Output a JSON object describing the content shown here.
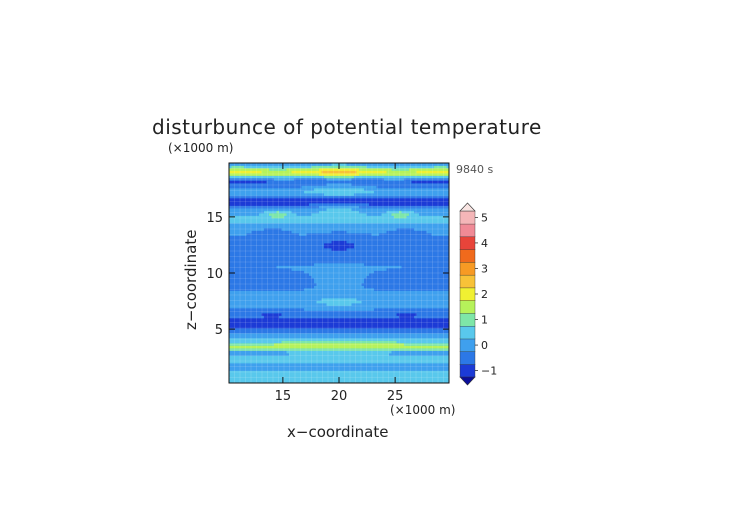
{
  "chart_data": {
    "type": "heatmap",
    "title": "disturbunce of potential temperature",
    "time_label": "9840 s",
    "xlabel": "x−coordinate",
    "ylabel": "z−coordinate",
    "x_unit": "(×1000 m)",
    "z_unit": "(×1000 m)",
    "xlim": [
      10.2,
      29.8
    ],
    "ylim": [
      0.2,
      19.8
    ],
    "x_ticks": [
      15,
      20,
      25
    ],
    "y_ticks": [
      5,
      10,
      15
    ],
    "x_tick_labels": [
      "15",
      "20",
      "25"
    ],
    "y_tick_labels": [
      "5",
      "10",
      "15"
    ],
    "grid": true,
    "colorbar": {
      "levels": [
        -1,
        -0.5,
        0,
        0.5,
        1,
        1.5,
        2,
        2.5,
        3,
        3.5,
        4,
        4.5,
        5
      ],
      "tick_values": [
        -1,
        0,
        1,
        2,
        3,
        4,
        5
      ],
      "tick_labels": [
        "−1",
        "0",
        "1",
        "2",
        "3",
        "4",
        "5"
      ],
      "colors": [
        "#1c3bd6",
        "#2c78e6",
        "#3fa0ee",
        "#59c8ec",
        "#7ee6a8",
        "#b6f25a",
        "#f0f032",
        "#f8c238",
        "#f79a24",
        "#f06a1c",
        "#e8443a",
        "#f08a96",
        "#f4b6b8"
      ],
      "extend_low": "#0b0e9a",
      "extend_high": "#f8e4e2"
    },
    "z_profile": [
      {
        "z": 0.2,
        "v": 0.7
      },
      {
        "z": 0.9,
        "v": 0.8
      },
      {
        "z": 1.6,
        "v": 0.3
      },
      {
        "z": 2.3,
        "v": 0.7
      },
      {
        "z": 2.9,
        "v": 0.4
      },
      {
        "z": 3.5,
        "v": 1.6
      },
      {
        "z": 4.1,
        "v": 0.6
      },
      {
        "z": 4.7,
        "v": -0.1
      },
      {
        "z": 5.5,
        "v": -0.9
      },
      {
        "z": 6.2,
        "v": -0.3
      },
      {
        "z": 7.5,
        "v": 0.4
      },
      {
        "z": 9.0,
        "v": -0.2
      },
      {
        "z": 10.5,
        "v": 0.0
      },
      {
        "z": 12.5,
        "v": -0.2
      },
      {
        "z": 13.8,
        "v": 0.1
      },
      {
        "z": 14.8,
        "v": 0.6
      },
      {
        "z": 15.6,
        "v": 0.1
      },
      {
        "z": 16.4,
        "v": -0.8
      },
      {
        "z": 17.2,
        "v": 0.3
      },
      {
        "z": 18.2,
        "v": -0.9
      },
      {
        "z": 19.0,
        "v": 1.8
      },
      {
        "z": 19.8,
        "v": 0.0
      }
    ],
    "features": [
      {
        "x": 20.0,
        "z": 19.0,
        "sx": 3.0,
        "sz": 0.8,
        "a": 0.9
      },
      {
        "x": 11.0,
        "z": 18.8,
        "sx": 2.0,
        "sz": 0.9,
        "a": 0.6
      },
      {
        "x": 29.0,
        "z": 18.8,
        "sx": 2.0,
        "sz": 0.9,
        "a": 0.6
      },
      {
        "x": 15.0,
        "z": 18.3,
        "sx": 1.5,
        "sz": 0.5,
        "a": 0.8
      },
      {
        "x": 25.0,
        "z": 18.3,
        "sx": 1.5,
        "sz": 0.5,
        "a": 0.8
      },
      {
        "x": 20.0,
        "z": 17.6,
        "sx": 3.0,
        "sz": 0.8,
        "a": 0.7
      },
      {
        "x": 14.5,
        "z": 15.3,
        "sx": 1.2,
        "sz": 0.4,
        "a": 1.0
      },
      {
        "x": 25.5,
        "z": 15.3,
        "sx": 1.2,
        "sz": 0.4,
        "a": 1.0
      },
      {
        "x": 20.0,
        "z": 15.5,
        "sx": 2.5,
        "sz": 0.5,
        "a": 0.6
      },
      {
        "x": 20.0,
        "z": 12.5,
        "sx": 2.5,
        "sz": 1.0,
        "a": -0.4
      },
      {
        "x": 14.0,
        "z": 13.5,
        "sx": 1.5,
        "sz": 0.4,
        "a": -0.4
      },
      {
        "x": 26.0,
        "z": 13.5,
        "sx": 1.5,
        "sz": 0.4,
        "a": -0.4
      },
      {
        "x": 20.0,
        "z": 9.0,
        "sx": 2.5,
        "sz": 1.2,
        "a": 0.4
      },
      {
        "x": 20.0,
        "z": 7.0,
        "sx": 2.5,
        "sz": 0.6,
        "a": 0.2
      },
      {
        "x": 14.0,
        "z": 6.5,
        "sx": 2.0,
        "sz": 0.6,
        "a": -0.3
      },
      {
        "x": 26.0,
        "z": 6.5,
        "sx": 2.0,
        "sz": 0.6,
        "a": -0.3
      },
      {
        "x": 20.0,
        "z": 3.7,
        "sx": 4.0,
        "sz": 0.5,
        "a": 0.5
      },
      {
        "x": 20.0,
        "z": 2.5,
        "sx": 4.0,
        "sz": 0.4,
        "a": 0.3
      }
    ]
  }
}
